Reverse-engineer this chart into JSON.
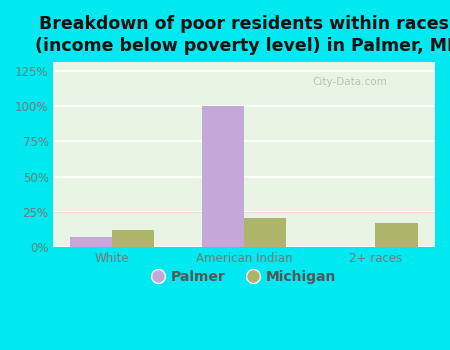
{
  "title": "Breakdown of poor residents within races\n(income below poverty level) in Palmer, MI",
  "categories": [
    "White",
    "American Indian",
    "2+ races"
  ],
  "palmer_values": [
    7,
    100,
    0
  ],
  "michigan_values": [
    12,
    21,
    17
  ],
  "palmer_color": "#c4a8d8",
  "michigan_color": "#adb56a",
  "bg_outer": "#00e8f0",
  "bg_plot_colors": [
    "#d8eedc",
    "#eef8ee",
    "#f5fff5"
  ],
  "grid_color": "#ffffff",
  "ylim": [
    0,
    131
  ],
  "yticks": [
    0,
    25,
    50,
    75,
    100,
    125
  ],
  "ytick_labels": [
    "0%",
    "25%",
    "50%",
    "75%",
    "100%",
    "125%"
  ],
  "title_fontsize": 12.5,
  "bar_width": 0.32,
  "legend_labels": [
    "Palmer",
    "Michigan"
  ],
  "tick_color": "#777777",
  "watermark": "City-Data.com"
}
